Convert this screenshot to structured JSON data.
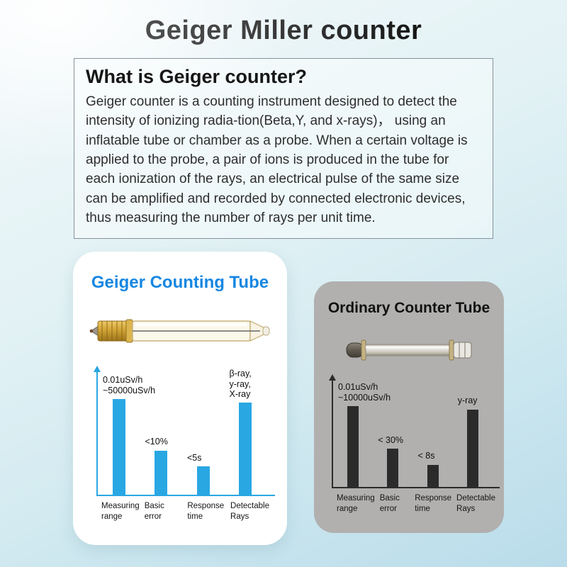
{
  "title": "Geiger Miller counter",
  "info_box": {
    "heading": "What is Geiger counter?",
    "body": "Geiger counter is a counting instrument designed to detect the intensity of ionizing radia-tion(Beta,Y, and x-rays)， using an inflatable tube or chamber as a probe. When a certain voltage is applied to the probe, a pair of ions is produced in the tube for each ionization of the rays, an electrical pulse of the same size can be amplified and recorded by connected electronic devices, thus measuring the number of rays per unit time."
  },
  "panels": [
    {
      "title": "Geiger Counting Tube"
    },
    {
      "title": "Ordinary Counter Tube"
    }
  ],
  "colors": {
    "geiger_accent": "#1787e2",
    "geiger_bar": "#29a7e3",
    "ordinary_bar": "#2b2b2b",
    "ordinary_panel_bg": "#b1b0af"
  },
  "chart_data": [
    {
      "type": "bar",
      "title": "Geiger Counting Tube",
      "categories": [
        "Measuring\nrange",
        "Basic\nerror",
        "Response\ntime",
        "Detectable\nRays"
      ],
      "values": [
        78,
        36,
        23,
        75
      ],
      "values_note": "relative bar heights in % of axis; chart has no numeric scale",
      "value_labels": [
        "0.01uSv/h\n~50000uSv/h",
        "<10%",
        "<5s",
        "β-ray,\ny-ray,\nX-ray"
      ],
      "bar_color": "#29a7e3",
      "axis_color": "#29a7e3",
      "ylim": [
        0,
        100
      ],
      "grid": false,
      "legend": false
    },
    {
      "type": "bar",
      "title": "Ordinary Counter Tube",
      "categories": [
        "Measuring\nrange",
        "Basic\nerror",
        "Response\ntime",
        "Detectable\nRays"
      ],
      "values": [
        76,
        36,
        21,
        73
      ],
      "values_note": "relative bar heights in % of axis; chart has no numeric scale",
      "value_labels": [
        "0.01uSv/h\n~10000uSv/h",
        "< 30%",
        "< 8s",
        "y-ray"
      ],
      "bar_color": "#2b2b2b",
      "axis_color": "#2b2b2b",
      "ylim": [
        0,
        100
      ],
      "grid": false,
      "legend": false
    }
  ]
}
